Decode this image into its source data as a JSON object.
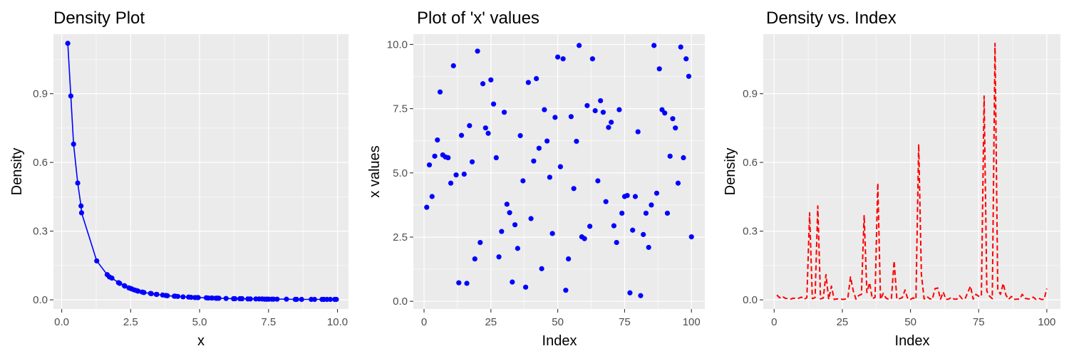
{
  "chart_data": [
    {
      "type": "line",
      "title": "Density Plot",
      "xlabel": "x",
      "ylabel": "Density",
      "xlim": [
        -0.3,
        10.4
      ],
      "ylim": [
        -0.04,
        1.16
      ],
      "x_ticks": [
        0.0,
        2.5,
        5.0,
        7.5,
        10.0
      ],
      "x_tick_labels": [
        "0.0",
        "2.5",
        "5.0",
        "7.5",
        "10.0"
      ],
      "y_ticks": [
        0.0,
        0.3,
        0.6,
        0.9
      ],
      "y_tick_labels": [
        "0.0",
        "0.3",
        "0.6",
        "0.9"
      ],
      "grid": true,
      "colors": {
        "series": "#0000ff"
      },
      "series": [
        {
          "markers": true,
          "x": [
            0.22,
            0.33,
            0.43,
            0.58,
            0.7,
            0.72,
            1.27,
            1.65,
            1.73,
            1.82,
            2.06,
            2.1,
            2.27,
            2.29,
            2.44,
            2.51,
            2.55,
            2.64,
            2.72,
            2.77,
            2.92,
            2.98,
            3.22,
            3.25,
            3.43,
            3.45,
            3.66,
            3.78,
            3.83,
            4.08,
            4.12,
            4.21,
            4.4,
            4.6,
            4.69,
            4.83,
            4.92,
            4.95,
            5.24,
            5.31,
            5.43,
            5.46,
            5.59,
            5.62,
            5.65,
            5.7,
            5.96,
            6.23,
            6.28,
            6.46,
            6.51,
            6.54,
            6.75,
            6.84,
            7.04,
            7.16,
            7.27,
            7.36,
            7.42,
            7.46,
            7.51,
            7.62,
            7.68,
            7.81,
            8.15,
            8.47,
            8.52,
            8.7,
            9.05,
            9.17,
            9.44,
            9.51,
            9.62,
            9.74,
            9.9,
            9.96
          ],
          "y": [
            1.12,
            0.89,
            0.68,
            0.51,
            0.41,
            0.38,
            0.17,
            0.11,
            0.1,
            0.095,
            0.075,
            0.072,
            0.062,
            0.06,
            0.052,
            0.049,
            0.047,
            0.043,
            0.04,
            0.038,
            0.034,
            0.032,
            0.028,
            0.027,
            0.024,
            0.024,
            0.021,
            0.019,
            0.018,
            0.016,
            0.016,
            0.015,
            0.013,
            0.012,
            0.011,
            0.01,
            0.01,
            0.01,
            0.009,
            0.008,
            0.008,
            0.008,
            0.007,
            0.007,
            0.007,
            0.007,
            0.006,
            0.005,
            0.005,
            0.005,
            0.005,
            0.005,
            0.004,
            0.004,
            0.004,
            0.004,
            0.004,
            0.003,
            0.003,
            0.003,
            0.003,
            0.003,
            0.003,
            0.003,
            0.003,
            0.002,
            0.002,
            0.002,
            0.002,
            0.002,
            0.002,
            0.002,
            0.002,
            0.002,
            0.002,
            0.002
          ]
        }
      ]
    },
    {
      "type": "scatter",
      "title": "Plot of 'x' values",
      "xlabel": "Index",
      "ylabel": "x values",
      "xlim": [
        -4,
        105
      ],
      "ylim": [
        -0.3,
        10.4
      ],
      "x_ticks": [
        0,
        25,
        50,
        75,
        100
      ],
      "x_tick_labels": [
        "0",
        "25",
        "50",
        "75",
        "100"
      ],
      "y_ticks": [
        0.0,
        2.5,
        5.0,
        7.5,
        10.0
      ],
      "y_tick_labels": [
        "0.0",
        "2.5",
        "5.0",
        "7.5",
        "10.0"
      ],
      "grid": true,
      "colors": {
        "series": "#0000ff"
      },
      "series": [
        {
          "x": [
            1,
            2,
            3,
            4,
            5,
            6,
            7,
            8,
            9,
            10,
            11,
            12,
            13,
            14,
            15,
            16,
            17,
            18,
            19,
            20,
            21,
            22,
            23,
            24,
            25,
            26,
            27,
            28,
            29,
            30,
            31,
            32,
            33,
            34,
            35,
            36,
            37,
            38,
            39,
            40,
            41,
            42,
            43,
            44,
            45,
            46,
            47,
            48,
            49,
            50,
            51,
            52,
            53,
            54,
            55,
            56,
            57,
            58,
            59,
            60,
            61,
            62,
            63,
            64,
            65,
            66,
            67,
            68,
            69,
            70,
            71,
            72,
            73,
            74,
            75,
            76,
            77,
            78,
            79,
            80,
            81,
            82,
            83,
            84,
            85,
            86,
            87,
            88,
            89,
            90,
            91,
            92,
            93,
            94,
            95,
            96,
            97,
            98,
            99,
            100
          ],
          "y": [
            3.66,
            5.31,
            4.08,
            5.65,
            6.28,
            8.15,
            5.7,
            5.62,
            5.59,
            4.6,
            9.17,
            4.92,
            0.72,
            6.46,
            4.95,
            0.7,
            6.84,
            5.43,
            1.65,
            9.74,
            2.29,
            8.47,
            6.75,
            6.54,
            8.62,
            7.68,
            5.59,
            1.73,
            2.72,
            7.36,
            3.78,
            3.45,
            0.75,
            2.98,
            2.06,
            6.45,
            4.69,
            0.55,
            8.52,
            3.22,
            5.46,
            8.67,
            5.96,
            1.27,
            7.46,
            6.24,
            4.83,
            2.64,
            7.16,
            9.51,
            5.24,
            9.44,
            0.43,
            1.65,
            7.19,
            4.39,
            6.23,
            9.96,
            2.51,
            2.44,
            7.62,
            2.92,
            9.44,
            7.42,
            4.69,
            7.81,
            7.36,
            3.88,
            6.77,
            6.97,
            2.94,
            2.29,
            7.46,
            3.43,
            4.08,
            4.12,
            0.33,
            2.77,
            4.08,
            6.6,
            0.22,
            2.6,
            3.43,
            2.1,
            3.75,
            9.96,
            4.21,
            9.05,
            7.46,
            7.33,
            3.43,
            5.65,
            7.11,
            6.75,
            4.6,
            9.9,
            5.59,
            9.44,
            8.76,
            2.51
          ]
        }
      ]
    },
    {
      "type": "line",
      "title": "Density vs. Index",
      "xlabel": "Index",
      "ylabel": "Density",
      "xlim": [
        -4,
        105
      ],
      "ylim": [
        -0.04,
        1.16
      ],
      "x_ticks": [
        0,
        25,
        50,
        75,
        100
      ],
      "x_tick_labels": [
        "0",
        "25",
        "50",
        "75",
        "100"
      ],
      "y_ticks": [
        0.0,
        0.3,
        0.6,
        0.9
      ],
      "y_tick_labels": [
        "0.0",
        "0.3",
        "0.6",
        "0.9"
      ],
      "grid": true,
      "line_style": "dashed",
      "colors": {
        "series": "#ff0000"
      },
      "series": [
        {
          "x": [
            1,
            2,
            3,
            4,
            5,
            6,
            7,
            8,
            9,
            10,
            11,
            12,
            13,
            14,
            15,
            16,
            17,
            18,
            19,
            20,
            21,
            22,
            23,
            24,
            25,
            26,
            27,
            28,
            29,
            30,
            31,
            32,
            33,
            34,
            35,
            36,
            37,
            38,
            39,
            40,
            41,
            42,
            43,
            44,
            45,
            46,
            47,
            48,
            49,
            50,
            51,
            52,
            53,
            54,
            55,
            56,
            57,
            58,
            59,
            60,
            61,
            62,
            63,
            64,
            65,
            66,
            67,
            68,
            69,
            70,
            71,
            72,
            73,
            74,
            75,
            76,
            77,
            78,
            79,
            80,
            81,
            82,
            83,
            84,
            85,
            86,
            87,
            88,
            89,
            90,
            91,
            92,
            93,
            94,
            95,
            96,
            97,
            98,
            99,
            100
          ],
          "y": [
            0.021,
            0.009,
            0.016,
            0.007,
            0.005,
            0.003,
            0.007,
            0.007,
            0.007,
            0.012,
            0.002,
            0.01,
            0.38,
            0.005,
            0.01,
            0.41,
            0.004,
            0.008,
            0.11,
            0.002,
            0.06,
            0.002,
            0.004,
            0.005,
            0.002,
            0.003,
            0.007,
            0.1,
            0.04,
            0.003,
            0.019,
            0.024,
            0.37,
            0.032,
            0.075,
            0.005,
            0.011,
            0.51,
            0.002,
            0.028,
            0.008,
            0.002,
            0.006,
            0.17,
            0.003,
            0.005,
            0.01,
            0.043,
            0.004,
            0.002,
            0.009,
            0.002,
            0.68,
            0.11,
            0.004,
            0.015,
            0.005,
            0.002,
            0.049,
            0.052,
            0.003,
            0.034,
            0.002,
            0.003,
            0.011,
            0.003,
            0.003,
            0.018,
            0.004,
            0.004,
            0.032,
            0.06,
            0.003,
            0.024,
            0.016,
            0.016,
            0.89,
            0.038,
            0.016,
            0.005,
            1.12,
            0.047,
            0.024,
            0.072,
            0.021,
            0.002,
            0.015,
            0.002,
            0.003,
            0.003,
            0.024,
            0.007,
            0.004,
            0.004,
            0.012,
            0.002,
            0.007,
            0.002,
            0.002,
            0.049
          ]
        }
      ]
    }
  ]
}
